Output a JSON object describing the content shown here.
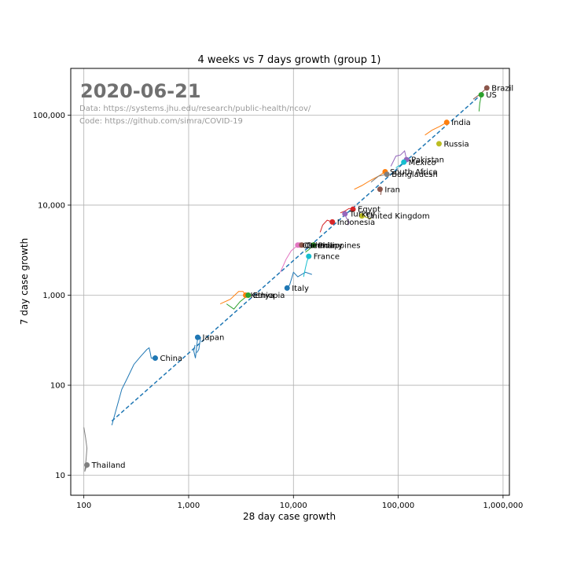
{
  "chart_data": {
    "type": "scatter",
    "title": "4 weeks vs 7 days growth (group 1)",
    "xlabel": "28 day case growth",
    "ylabel": "7 day case growth",
    "xscale": "log",
    "yscale": "log",
    "xlim": [
      75,
      1150000
    ],
    "ylim": [
      6,
      330000
    ],
    "grid": true,
    "x_ticks": [
      {
        "value": 100,
        "label": "100"
      },
      {
        "value": 1000,
        "label": "1,000"
      },
      {
        "value": 10000,
        "label": "10,000"
      },
      {
        "value": 100000,
        "label": "100,000"
      },
      {
        "value": 1000000,
        "label": "1,000,000"
      }
    ],
    "y_ticks": [
      {
        "value": 10,
        "label": "10"
      },
      {
        "value": 100,
        "label": "100"
      },
      {
        "value": 1000,
        "label": "1,000"
      },
      {
        "value": 10000,
        "label": "10,000"
      },
      {
        "value": 100000,
        "label": "100,000"
      }
    ],
    "annotations": {
      "date": "2020-06-21",
      "data_source": "Data: https://systems.jhu.edu/research/public-health/ncov/",
      "code_source": "Code: https://github.com/simra/COVID-19"
    },
    "trend_line": {
      "color": "#1f77b4",
      "style": "dashed",
      "points": [
        [
          185,
          40
        ],
        [
          640000,
          175000
        ]
      ]
    },
    "points": [
      {
        "name": "Brazil",
        "x": 700000,
        "y": 200000,
        "color": "#8c564b"
      },
      {
        "name": "US",
        "x": 620000,
        "y": 168000,
        "color": "#2ca02c"
      },
      {
        "name": "India",
        "x": 290000,
        "y": 83000,
        "color": "#ff7f0e"
      },
      {
        "name": "Russia",
        "x": 245000,
        "y": 48000,
        "color": "#bcbd22"
      },
      {
        "name": "Pakistan",
        "x": 120000,
        "y": 32000,
        "color": "#9467bd"
      },
      {
        "name": "Mexico",
        "x": 113000,
        "y": 30000,
        "color": "#17becf"
      },
      {
        "name": "South Africa",
        "x": 75000,
        "y": 23500,
        "color": "#ff7f0e"
      },
      {
        "name": "Bangladesh",
        "x": 78000,
        "y": 22000,
        "color": "#7f7f7f"
      },
      {
        "name": "Iran",
        "x": 67000,
        "y": 15000,
        "color": "#8c564b"
      },
      {
        "name": "Egypt",
        "x": 37000,
        "y": 9000,
        "color": "#d62728"
      },
      {
        "name": "Turkey",
        "x": 31000,
        "y": 8000,
        "color": "#9467bd"
      },
      {
        "name": "United Kingdom",
        "x": 45000,
        "y": 7600,
        "color": "#bcbd22"
      },
      {
        "name": "Indonesia",
        "x": 23500,
        "y": 6500,
        "color": "#d62728"
      },
      {
        "name": "Chile",
        "x": 11000,
        "y": 3600,
        "color": "#e377c2"
      },
      {
        "name": "Canada",
        "x": 11500,
        "y": 3600,
        "color": "#e377c2"
      },
      {
        "name": "Germany",
        "x": 12000,
        "y": 3600,
        "color": "#8c564b"
      },
      {
        "name": "Philippines",
        "x": 15500,
        "y": 3600,
        "color": "#2ca02c"
      },
      {
        "name": "France",
        "x": 14000,
        "y": 2700,
        "color": "#17becf"
      },
      {
        "name": "Italy",
        "x": 8700,
        "y": 1200,
        "color": "#1f77b4"
      },
      {
        "name": "Kenya",
        "x": 3500,
        "y": 1000,
        "color": "#ff7f0e"
      },
      {
        "name": "Ethiopia",
        "x": 3700,
        "y": 1000,
        "color": "#2ca02c"
      },
      {
        "name": "Japan",
        "x": 1220,
        "y": 340,
        "color": "#1f77b4"
      },
      {
        "name": "China",
        "x": 480,
        "y": 200,
        "color": "#1f77b4"
      },
      {
        "name": "Thailand",
        "x": 107,
        "y": 13,
        "color": "#7f7f7f"
      }
    ],
    "trails": [
      {
        "name": "China",
        "color": "#1f77b4",
        "points": [
          [
            185,
            36
          ],
          [
            200,
            50
          ],
          [
            230,
            90
          ],
          [
            260,
            120
          ],
          [
            300,
            170
          ],
          [
            350,
            210
          ],
          [
            400,
            250
          ],
          [
            420,
            260
          ],
          [
            430,
            230
          ],
          [
            440,
            200
          ],
          [
            480,
            200
          ]
        ]
      },
      {
        "name": "Japan",
        "color": "#1f77b4",
        "points": [
          [
            1150,
            280
          ],
          [
            1120,
            240
          ],
          [
            1160,
            200
          ],
          [
            1220,
            340
          ],
          [
            1300,
            340
          ],
          [
            1250,
            250
          ],
          [
            1200,
            230
          ]
        ]
      },
      {
        "name": "Thailand",
        "color": "#7f7f7f",
        "points": [
          [
            100,
            34
          ],
          [
            104,
            26
          ],
          [
            107,
            20
          ],
          [
            105,
            15
          ],
          [
            102,
            11
          ],
          [
            107,
            13
          ]
        ]
      },
      {
        "name": "Kenya",
        "color": "#ff7f0e",
        "points": [
          [
            2000,
            800
          ],
          [
            2500,
            900
          ],
          [
            3000,
            1100
          ],
          [
            3300,
            1100
          ],
          [
            3500,
            1000
          ]
        ]
      },
      {
        "name": "Ethiopia",
        "color": "#2ca02c",
        "points": [
          [
            2300,
            800
          ],
          [
            2700,
            700
          ],
          [
            3100,
            850
          ],
          [
            3500,
            950
          ],
          [
            3700,
            1000
          ]
        ]
      },
      {
        "name": "Italy",
        "color": "#1f77b4",
        "points": [
          [
            15000,
            1700
          ],
          [
            13000,
            1800
          ],
          [
            11000,
            1600
          ],
          [
            10000,
            1800
          ],
          [
            9200,
            1300
          ],
          [
            8700,
            1200
          ]
        ]
      },
      {
        "name": "Chile",
        "color": "#e377c2",
        "points": [
          [
            7500,
            1800
          ],
          [
            8500,
            2500
          ],
          [
            9500,
            3100
          ],
          [
            11000,
            3600
          ]
        ]
      },
      {
        "name": "France",
        "color": "#17becf",
        "points": [
          [
            12500,
            1600
          ],
          [
            13000,
            2000
          ],
          [
            13500,
            2400
          ],
          [
            14000,
            2700
          ]
        ]
      },
      {
        "name": "Philippines",
        "color": "#2ca02c",
        "points": [
          [
            13000,
            3000
          ],
          [
            14000,
            3200
          ],
          [
            15500,
            3600
          ]
        ]
      },
      {
        "name": "Indonesia",
        "color": "#d62728",
        "points": [
          [
            18000,
            5000
          ],
          [
            19000,
            6000
          ],
          [
            21000,
            6800
          ],
          [
            23500,
            6500
          ]
        ]
      },
      {
        "name": "Turkey",
        "color": "#9467bd",
        "points": [
          [
            33000,
            6000
          ],
          [
            34000,
            6500
          ],
          [
            32000,
            7200
          ],
          [
            31000,
            8000
          ]
        ]
      },
      {
        "name": "Egypt",
        "color": "#d62728",
        "points": [
          [
            28000,
            8200
          ],
          [
            31000,
            8600
          ],
          [
            34000,
            9200
          ],
          [
            37000,
            9000
          ]
        ]
      },
      {
        "name": "United Kingdom",
        "color": "#bcbd22",
        "points": [
          [
            55000,
            7000
          ],
          [
            50000,
            7300
          ],
          [
            45000,
            7600
          ]
        ]
      },
      {
        "name": "Iran",
        "color": "#8c564b",
        "points": [
          [
            68000,
            13000
          ],
          [
            69000,
            14500
          ],
          [
            67000,
            15000
          ]
        ]
      },
      {
        "name": "South Africa",
        "color": "#ff7f0e",
        "points": [
          [
            38000,
            15000
          ],
          [
            45000,
            16500
          ],
          [
            55000,
            19000
          ],
          [
            65000,
            21000
          ],
          [
            75000,
            23500
          ]
        ]
      },
      {
        "name": "Bangladesh",
        "color": "#7f7f7f",
        "points": [
          [
            55000,
            18000
          ],
          [
            65000,
            21000
          ],
          [
            78000,
            22000
          ]
        ]
      },
      {
        "name": "Pakistan",
        "color": "#9467bd",
        "points": [
          [
            85000,
            27000
          ],
          [
            95000,
            35000
          ],
          [
            105000,
            36000
          ],
          [
            115000,
            40000
          ],
          [
            120000,
            32000
          ]
        ]
      },
      {
        "name": "Mexico",
        "color": "#17becf",
        "points": [
          [
            95000,
            26000
          ],
          [
            105000,
            28000
          ],
          [
            113000,
            30000
          ]
        ]
      },
      {
        "name": "India",
        "color": "#ff7f0e",
        "points": [
          [
            180000,
            60000
          ],
          [
            210000,
            68000
          ],
          [
            250000,
            75000
          ],
          [
            290000,
            83000
          ]
        ]
      },
      {
        "name": "US",
        "color": "#2ca02c",
        "points": [
          [
            590000,
            110000
          ],
          [
            600000,
            135000
          ],
          [
            610000,
            150000
          ],
          [
            620000,
            168000
          ]
        ]
      },
      {
        "name": "Brazil",
        "color": "#8c564b",
        "points": [
          [
            520000,
            150000
          ],
          [
            600000,
            170000
          ],
          [
            650000,
            185000
          ],
          [
            700000,
            200000
          ]
        ]
      }
    ]
  }
}
